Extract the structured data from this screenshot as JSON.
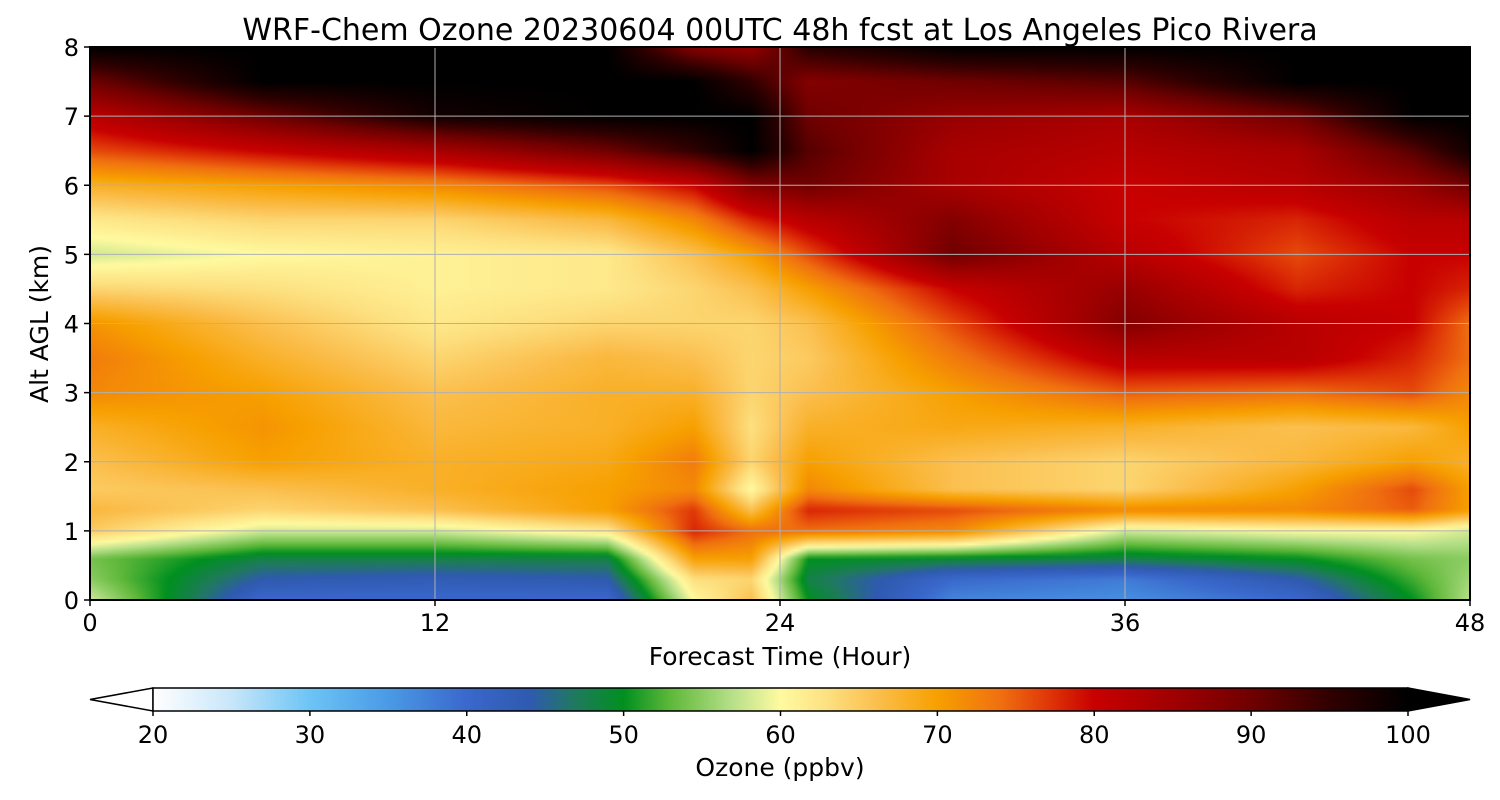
{
  "chart_data": {
    "type": "heatmap",
    "title": "WRF-Chem Ozone  20230604 00UTC 48h fcst at Los Angeles Pico Rivera",
    "xlabel": "Forecast Time (Hour)",
    "ylabel": "Alt AGL (km)",
    "xlim": [
      0,
      48
    ],
    "ylim": [
      0,
      8
    ],
    "xticks": [
      0,
      12,
      24,
      36,
      48
    ],
    "yticks": [
      0,
      1,
      2,
      3,
      4,
      5,
      6,
      7,
      8
    ],
    "grid": true,
    "colorbar": {
      "label": "Ozone  (ppbv)",
      "min": 20,
      "max": 100,
      "ticks": [
        20,
        30,
        40,
        50,
        60,
        70,
        80,
        90,
        100
      ],
      "extend": "both",
      "stops": [
        {
          "value": 20,
          "color": "#ffffff"
        },
        {
          "value": 25,
          "color": "#c8e6fa"
        },
        {
          "value": 30,
          "color": "#6cc4f5"
        },
        {
          "value": 35,
          "color": "#4a9ae6"
        },
        {
          "value": 40,
          "color": "#3a68cc"
        },
        {
          "value": 44,
          "color": "#2f5ab0"
        },
        {
          "value": 47,
          "color": "#1f7a5c"
        },
        {
          "value": 50,
          "color": "#00901f"
        },
        {
          "value": 53,
          "color": "#5fb83a"
        },
        {
          "value": 57,
          "color": "#b8e08a"
        },
        {
          "value": 60,
          "color": "#fffaa0"
        },
        {
          "value": 63,
          "color": "#fde080"
        },
        {
          "value": 66,
          "color": "#fbc050"
        },
        {
          "value": 70,
          "color": "#f7a000"
        },
        {
          "value": 74,
          "color": "#f07010"
        },
        {
          "value": 77,
          "color": "#e03808"
        },
        {
          "value": 80,
          "color": "#c80000"
        },
        {
          "value": 85,
          "color": "#a00000"
        },
        {
          "value": 90,
          "color": "#700000"
        },
        {
          "value": 95,
          "color": "#300000"
        },
        {
          "value": 100,
          "color": "#000000"
        }
      ]
    },
    "x": [
      0,
      6,
      12,
      18,
      21,
      23,
      25,
      30,
      36,
      42,
      46,
      48
    ],
    "y": [
      0,
      0.3,
      0.6,
      1,
      1.3,
      1.6,
      2,
      2.5,
      3,
      3.5,
      4,
      4.5,
      5,
      5.5,
      6,
      6.5,
      7,
      7.5,
      8
    ],
    "z": [
      [
        58,
        40,
        40,
        40,
        60,
        66,
        50,
        37,
        36,
        40,
        50,
        57
      ],
      [
        55,
        44,
        43,
        44,
        63,
        64,
        48,
        40,
        38,
        44,
        52,
        56
      ],
      [
        54,
        48,
        48,
        48,
        70,
        70,
        50,
        49,
        48,
        50,
        54,
        55
      ],
      [
        65,
        58,
        58,
        62,
        78,
        74,
        74,
        72,
        58,
        60,
        60,
        58
      ],
      [
        67,
        64,
        66,
        70,
        77,
        66,
        78,
        76,
        72,
        72,
        75,
        70
      ],
      [
        65,
        66,
        68,
        70,
        72,
        60,
        72,
        66,
        64,
        70,
        76,
        70
      ],
      [
        66,
        70,
        68,
        69,
        73,
        64,
        70,
        66,
        64,
        67,
        70,
        68
      ],
      [
        68,
        71,
        67,
        68,
        70,
        63,
        68,
        69,
        68,
        66,
        67,
        70
      ],
      [
        72,
        70,
        66,
        68,
        68,
        64,
        66,
        70,
        75,
        74,
        76,
        72
      ],
      [
        73,
        68,
        64,
        67,
        66,
        64,
        65,
        73,
        82,
        82,
        78,
        74
      ],
      [
        71,
        66,
        62,
        64,
        64,
        64,
        66,
        76,
        88,
        82,
        80,
        74
      ],
      [
        64,
        63,
        61,
        62,
        64,
        66,
        70,
        80,
        86,
        78,
        80,
        78
      ],
      [
        58,
        60,
        61,
        62,
        66,
        70,
        76,
        90,
        82,
        76,
        80,
        80
      ],
      [
        62,
        64,
        64,
        67,
        72,
        78,
        82,
        88,
        80,
        78,
        82,
        82
      ],
      [
        68,
        70,
        72,
        76,
        80,
        88,
        90,
        84,
        80,
        82,
        86,
        90
      ],
      [
        76,
        80,
        84,
        90,
        95,
        100,
        92,
        84,
        82,
        84,
        92,
        98
      ],
      [
        82,
        90,
        98,
        100,
        100,
        100,
        90,
        86,
        84,
        90,
        100,
        100
      ],
      [
        90,
        100,
        100,
        100,
        100,
        95,
        88,
        90,
        92,
        100,
        100,
        100
      ],
      [
        100,
        100,
        100,
        100,
        88,
        86,
        96,
        100,
        100,
        100,
        100,
        100
      ]
    ]
  }
}
